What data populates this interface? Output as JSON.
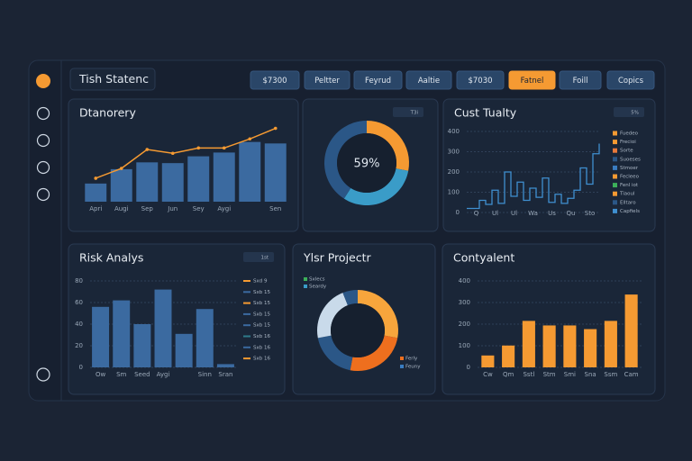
{
  "header": {
    "title": "Tish Statenc",
    "buttons": [
      {
        "label": "$7300",
        "active": false
      },
      {
        "label": "Peltter",
        "active": false
      },
      {
        "label": "Feyrud",
        "active": false
      },
      {
        "label": "Aaltie",
        "active": false
      },
      {
        "label": "$7030",
        "active": false
      },
      {
        "label": "Fatnel",
        "active": true
      },
      {
        "label": "Foill",
        "active": false
      },
      {
        "label": "Copics",
        "active": false
      }
    ]
  },
  "charts": [
    {
      "type": "bar",
      "title": "Dtanorery",
      "color": "#3b6aa0",
      "line_color": "#f59a32",
      "categories": [
        "Apri",
        "Augi",
        "Sep",
        "Jun",
        "Sey",
        "Aygi",
        null,
        "Sen"
      ],
      "values": [
        24,
        43,
        52,
        51,
        60,
        65,
        79,
        77
      ],
      "line_values": [
        31,
        44,
        69,
        64,
        71,
        71,
        83,
        97
      ],
      "ylim": [
        0,
        100
      ]
    },
    {
      "type": "donut",
      "badge": "T3i",
      "center_label": "59%",
      "values": [
        28,
        31,
        41
      ],
      "colors": [
        "#f59a32",
        "#3a9cc8",
        "#2b5787"
      ]
    },
    {
      "type": "step",
      "title": "Cust Tualty",
      "badge": "5%",
      "color": "#3f8fd0",
      "categories": [
        "Q",
        "Ul",
        "Ul",
        "Wa",
        "Us",
        "Qu",
        "Sto"
      ],
      "values": [
        20,
        20,
        60,
        40,
        110,
        45,
        200,
        80,
        150,
        60,
        120,
        75,
        170,
        50,
        90,
        45,
        70,
        110,
        220,
        140,
        290,
        340
      ],
      "ylim": [
        0,
        400
      ],
      "yticks": [
        0,
        100,
        200,
        300,
        400
      ],
      "legend": [
        {
          "name": "Fuedeo",
          "color": "#f59a32"
        },
        {
          "name": "Frecioi",
          "color": "#f59a32"
        },
        {
          "name": "Sorte",
          "color": "#e8793a"
        },
        {
          "name": "Suoeses",
          "color": "#2b5787"
        },
        {
          "name": "Stmoer",
          "color": "#3a7cc0"
        },
        {
          "name": "Fecleeo",
          "color": "#f59a32"
        },
        {
          "name": "Fenl iot",
          "color": "#3cb05a"
        },
        {
          "name": "Tiaoul",
          "color": "#f59a32"
        },
        {
          "name": "Elltaro",
          "color": "#2b5787"
        },
        {
          "name": "Capfiels",
          "color": "#3f8fd0"
        }
      ]
    },
    {
      "type": "bar",
      "title": "Risk Analys",
      "badge": "1st",
      "color": "#3b6aa0",
      "categories": [
        "Ow",
        "Sm",
        "Seed",
        "Aygi",
        null,
        "Sinn",
        "Sran"
      ],
      "values": [
        56,
        62,
        40,
        72,
        31,
        54,
        3
      ],
      "ylim": [
        0,
        80
      ],
      "yticks": [
        0,
        20,
        40,
        60,
        80
      ],
      "legend": [
        {
          "name": "Sxd 9",
          "color": "#f59a32"
        },
        {
          "name": "Sxb 15",
          "color": "#3b6aa0"
        },
        {
          "name": "Sxb 15",
          "color": "#f59a32"
        },
        {
          "name": "Sxb 15",
          "color": "#3b6aa0"
        },
        {
          "name": "Sxb 15",
          "color": "#3b6aa0"
        },
        {
          "name": "Sxb 16",
          "color": "#2f7a8a"
        },
        {
          "name": "Sxb 16",
          "color": "#3b6aa0"
        },
        {
          "name": "Sxb 16",
          "color": "#f59a32"
        }
      ]
    },
    {
      "type": "donut",
      "title": "Ylsr Projectr",
      "values": [
        28,
        25,
        19,
        22,
        6
      ],
      "colors": [
        "#f7a53c",
        "#ee6f1e",
        "#2b5787",
        "#c9daea",
        "#2b5787"
      ],
      "legend": [
        {
          "name": "Sxlecs",
          "color": "#3cb05a"
        },
        {
          "name": "Seardy",
          "color": "#3a9cc8"
        },
        {
          "name": "Ferly",
          "color": "#ee6f1e"
        },
        {
          "name": "Feuny",
          "color": "#3a7cc0"
        }
      ]
    },
    {
      "type": "bar",
      "title": "Contyalent",
      "color": "#f59a32",
      "categories": [
        "Cw",
        "Qm",
        "Sstl",
        "Stm",
        "Smi",
        "Sna",
        "Ssm",
        "Cam"
      ],
      "values": [
        55,
        101,
        215,
        194,
        194,
        177,
        215,
        337
      ],
      "ylim": [
        0,
        400
      ],
      "yticks": [
        0,
        100,
        200,
        300,
        400
      ]
    }
  ]
}
